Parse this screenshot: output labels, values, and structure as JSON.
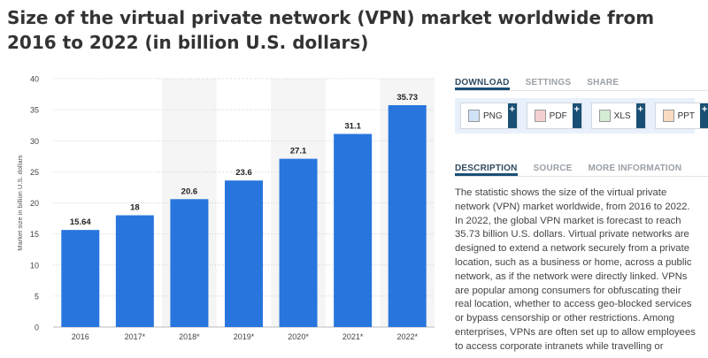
{
  "title": "Size of the virtual private network (VPN) market worldwide from 2016 to 2022 (in billion U.S. dollars)",
  "panel": {
    "tabs": [
      "DOWNLOAD",
      "SETTINGS",
      "SHARE"
    ],
    "downloads": [
      {
        "label": "PNG",
        "icon": "png-file-icon",
        "color": "#4a90d9"
      },
      {
        "label": "PDF",
        "icon": "pdf-file-icon",
        "color": "#d93b3b"
      },
      {
        "label": "XLS",
        "icon": "xls-file-icon",
        "color": "#3c9a3c"
      },
      {
        "label": "PPT",
        "icon": "ppt-file-icon",
        "color": "#e07b24"
      }
    ],
    "plus": "+",
    "info_tabs": [
      "DESCRIPTION",
      "SOURCE",
      "MORE INFORMATION"
    ],
    "description": "The statistic shows the size of the virtual private network (VPN) market worldwide, from 2016 to 2022. In 2022, the global VPN market is forecast to reach 35.73 billion U.S. dollars. Virtual private networks are designed to extend a network securely from a private location, such as a business or home, across a public network, as if the network were directly linked. VPNs are popular among consumers for obfuscating their real location, whether to access geo-blocked services or bypass censorship or other restrictions. Among enterprises, VPNs are often set up to allow employees to access corporate intranets while travelling or"
  },
  "chart_data": {
    "type": "bar",
    "title": "",
    "xlabel": "",
    "ylabel": "Market size in billion U.S. dollars",
    "categories": [
      "2016",
      "2017*",
      "2018*",
      "2019*",
      "2020*",
      "2021*",
      "2022*"
    ],
    "values": [
      15.64,
      18,
      20.6,
      23.6,
      27.1,
      31.1,
      35.73
    ],
    "value_labels": [
      "15.64",
      "18",
      "20.6",
      "23.6",
      "27.1",
      "31.1",
      "35.73"
    ],
    "yticks": [
      "0",
      "5",
      "10",
      "15",
      "20",
      "25",
      "30",
      "35",
      "40"
    ],
    "ylim": [
      0,
      40
    ],
    "bar_color": "#2876dd",
    "grid": true,
    "shaded_columns": [
      "2018*",
      "2020*",
      "2022*"
    ]
  }
}
